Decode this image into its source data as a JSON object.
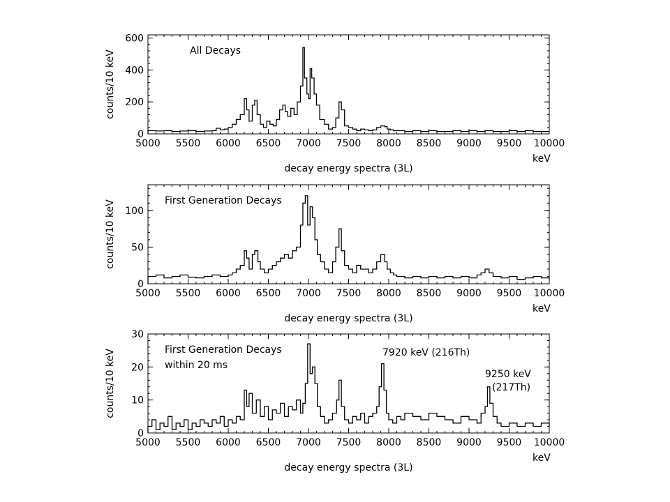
{
  "chart_data": [
    {
      "type": "line",
      "step": true,
      "title": "All Decays",
      "subtitle": "",
      "xlabel": "decay energy spectra (3L)",
      "x_unit": "keV",
      "ylabel": "counts/10 keV",
      "xlim": [
        5000,
        10000
      ],
      "ylim": [
        0,
        620
      ],
      "xticks": [
        5000,
        5500,
        6000,
        6500,
        7000,
        7500,
        8000,
        8500,
        9000,
        9500,
        10000
      ],
      "yticks": [
        0,
        200,
        400,
        600
      ],
      "grid": false,
      "legend": "none",
      "annotations": [],
      "series": [
        {
          "x": [
            5000,
            5100,
            5200,
            5300,
            5400,
            5500,
            5600,
            5700,
            5800,
            5850,
            5900,
            5950,
            6000,
            6050,
            6100,
            6150,
            6200,
            6230,
            6260,
            6300,
            6330,
            6360,
            6400,
            6440,
            6480,
            6520,
            6560,
            6600,
            6640,
            6680,
            6710,
            6740,
            6780,
            6820,
            6860,
            6900,
            6930,
            6950,
            6980,
            7000,
            7020,
            7040,
            7070,
            7100,
            7140,
            7200,
            7250,
            7300,
            7340,
            7380,
            7410,
            7450,
            7500,
            7550,
            7600,
            7650,
            7700,
            7750,
            7800,
            7850,
            7900,
            7950,
            7980,
            8020,
            8060,
            8100,
            8200,
            8300,
            8400,
            8500,
            8600,
            8700,
            8800,
            8900,
            9000,
            9100,
            9200,
            9300,
            9400,
            9500,
            9600,
            9700,
            9800,
            9900,
            10000
          ],
          "values": [
            20,
            18,
            20,
            15,
            18,
            20,
            15,
            18,
            20,
            35,
            25,
            30,
            40,
            60,
            90,
            120,
            220,
            150,
            80,
            180,
            210,
            120,
            60,
            40,
            80,
            60,
            50,
            90,
            150,
            180,
            140,
            110,
            160,
            120,
            200,
            300,
            540,
            350,
            250,
            220,
            410,
            350,
            250,
            180,
            90,
            60,
            30,
            40,
            100,
            200,
            150,
            50,
            40,
            30,
            20,
            30,
            25,
            20,
            25,
            40,
            50,
            45,
            30,
            25,
            20,
            20,
            15,
            20,
            15,
            20,
            15,
            15,
            20,
            15,
            20,
            15,
            20,
            15,
            15,
            20,
            15,
            20,
            15,
            15,
            15
          ]
        }
      ]
    },
    {
      "type": "line",
      "step": true,
      "title": "First Generation Decays",
      "subtitle": "",
      "xlabel": "decay energy spectra (3L)",
      "x_unit": "keV",
      "ylabel": "counts/10 keV",
      "xlim": [
        5000,
        10000
      ],
      "ylim": [
        0,
        135
      ],
      "xticks": [
        5000,
        5500,
        6000,
        6500,
        7000,
        7500,
        8000,
        8500,
        9000,
        9500,
        10000
      ],
      "yticks": [
        0,
        50,
        100
      ],
      "grid": false,
      "legend": "none",
      "annotations": [],
      "series": [
        {
          "x": [
            5000,
            5100,
            5200,
            5300,
            5400,
            5500,
            5600,
            5700,
            5800,
            5900,
            6000,
            6050,
            6100,
            6150,
            6200,
            6230,
            6260,
            6300,
            6330,
            6370,
            6400,
            6450,
            6500,
            6550,
            6600,
            6650,
            6700,
            6750,
            6800,
            6850,
            6900,
            6930,
            6960,
            6990,
            7020,
            7050,
            7080,
            7110,
            7150,
            7200,
            7250,
            7300,
            7340,
            7380,
            7410,
            7450,
            7500,
            7550,
            7600,
            7650,
            7700,
            7750,
            7800,
            7850,
            7900,
            7950,
            7980,
            8020,
            8060,
            8100,
            8200,
            8300,
            8400,
            8500,
            8600,
            8700,
            8800,
            8900,
            9000,
            9100,
            9150,
            9200,
            9250,
            9300,
            9400,
            9500,
            9600,
            9700,
            9800,
            9900,
            10000
          ],
          "values": [
            10,
            12,
            8,
            10,
            12,
            9,
            8,
            10,
            12,
            10,
            12,
            15,
            20,
            25,
            45,
            35,
            20,
            40,
            45,
            30,
            20,
            15,
            20,
            25,
            30,
            35,
            40,
            35,
            45,
            50,
            80,
            110,
            120,
            80,
            105,
            90,
            60,
            40,
            30,
            20,
            15,
            30,
            50,
            75,
            45,
            25,
            20,
            15,
            25,
            20,
            20,
            15,
            20,
            30,
            40,
            30,
            20,
            15,
            12,
            10,
            8,
            10,
            8,
            10,
            8,
            10,
            8,
            10,
            8,
            12,
            15,
            20,
            15,
            10,
            8,
            10,
            6,
            8,
            10,
            8,
            6
          ]
        }
      ]
    },
    {
      "type": "line",
      "step": true,
      "title": "First Generation Decays",
      "subtitle": "within 20 ms",
      "xlabel": "decay energy spectra (3L)",
      "x_unit": "keV",
      "ylabel": "counts/10 keV",
      "xlim": [
        5000,
        10000
      ],
      "ylim": [
        0,
        30
      ],
      "xticks": [
        5000,
        5500,
        6000,
        6500,
        7000,
        7500,
        8000,
        8500,
        9000,
        9500,
        10000
      ],
      "yticks": [
        0,
        10,
        20,
        30
      ],
      "grid": false,
      "legend": "none",
      "annotations": [
        {
          "text": "7920 keV (216Th)",
          "x": 7920,
          "y": 22
        },
        {
          "text": "9250 keV",
          "x": 9250,
          "y": 16
        },
        {
          "text": "(217Th)",
          "x": 9250,
          "y": 16
        }
      ],
      "series": [
        {
          "x": [
            5000,
            5050,
            5100,
            5150,
            5200,
            5250,
            5300,
            5350,
            5400,
            5450,
            5500,
            5550,
            5600,
            5650,
            5700,
            5750,
            5800,
            5850,
            5900,
            5950,
            6000,
            6050,
            6100,
            6150,
            6200,
            6230,
            6260,
            6300,
            6350,
            6400,
            6450,
            6500,
            6550,
            6600,
            6650,
            6700,
            6750,
            6800,
            6850,
            6900,
            6930,
            6960,
            6990,
            7020,
            7050,
            7080,
            7110,
            7150,
            7200,
            7250,
            7300,
            7350,
            7380,
            7410,
            7450,
            7500,
            7550,
            7600,
            7650,
            7700,
            7750,
            7800,
            7850,
            7880,
            7910,
            7940,
            7970,
            8000,
            8050,
            8100,
            8150,
            8200,
            8300,
            8400,
            8500,
            8600,
            8700,
            8800,
            8900,
            9000,
            9100,
            9150,
            9200,
            9230,
            9260,
            9300,
            9350,
            9400,
            9500,
            9600,
            9700,
            9800,
            9900,
            10000
          ],
          "values": [
            2,
            4,
            1,
            3,
            2,
            5,
            1,
            3,
            2,
            4,
            1,
            3,
            2,
            4,
            3,
            2,
            4,
            3,
            5,
            2,
            4,
            3,
            5,
            4,
            13,
            8,
            12,
            6,
            10,
            5,
            8,
            4,
            7,
            6,
            9,
            5,
            8,
            7,
            10,
            6,
            9,
            15,
            27,
            18,
            20,
            15,
            8,
            5,
            3,
            4,
            6,
            10,
            16,
            8,
            4,
            3,
            5,
            4,
            6,
            3,
            5,
            6,
            8,
            14,
            21,
            13,
            6,
            4,
            3,
            5,
            4,
            6,
            5,
            4,
            6,
            5,
            4,
            3,
            5,
            4,
            3,
            6,
            8,
            14,
            9,
            5,
            3,
            2,
            3,
            2,
            3,
            2,
            3,
            2
          ]
        }
      ]
    }
  ]
}
